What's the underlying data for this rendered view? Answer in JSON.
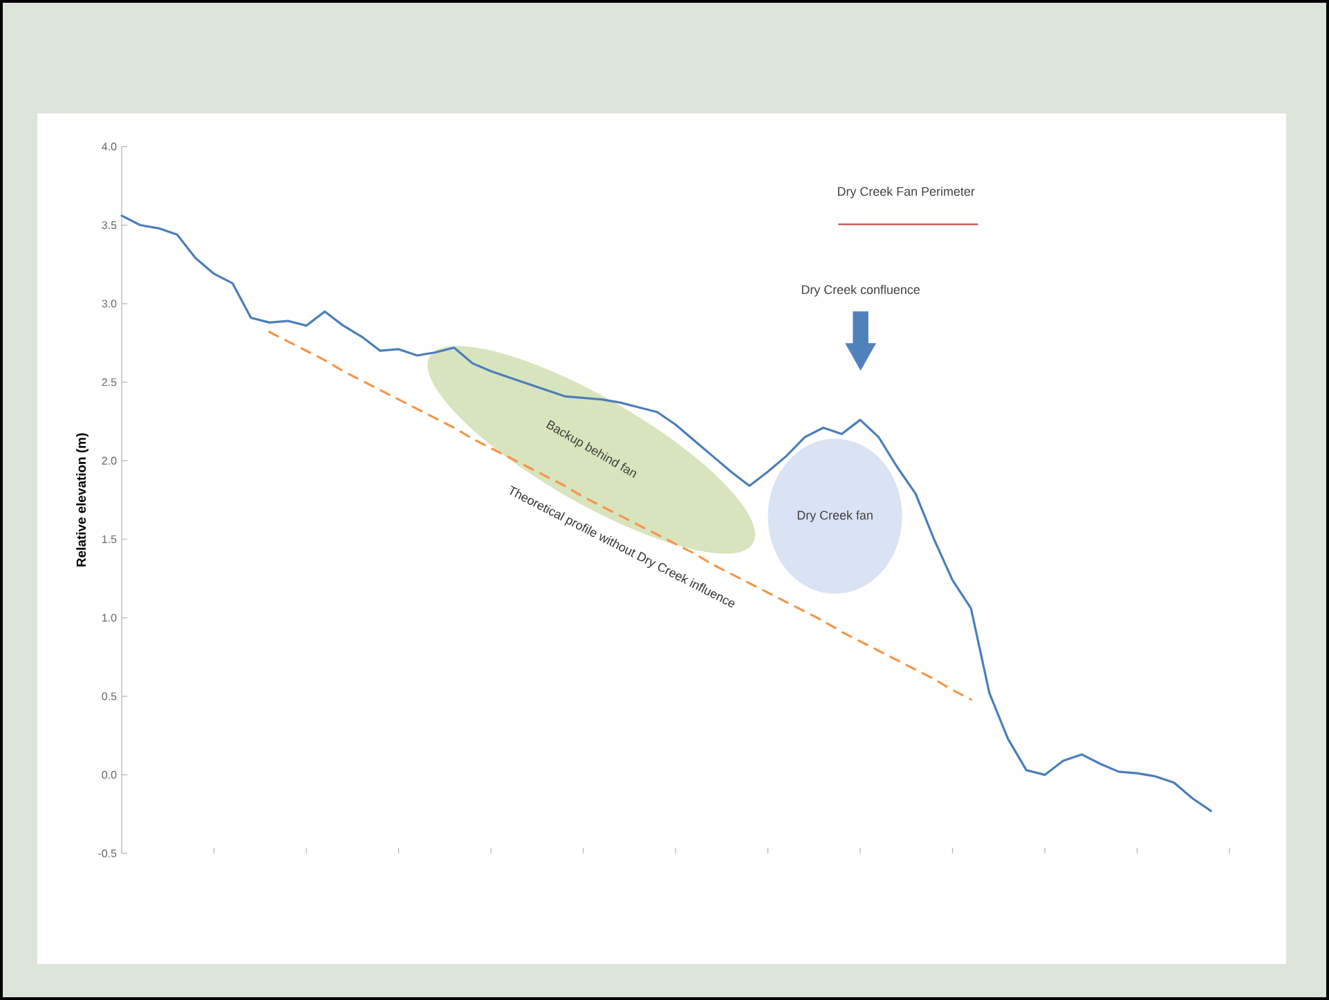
{
  "chart_data": {
    "type": "line",
    "ylabel": "Relative elevation (m)",
    "categories": [
      null,
      null,
      null,
      null,
      null,
      null,
      null,
      null,
      null,
      null,
      null,
      null,
      null,
      null,
      null,
      null,
      null,
      null,
      null,
      null,
      null,
      null,
      null,
      null,
      null,
      null,
      null,
      null,
      null,
      null,
      null,
      null,
      null,
      null,
      null,
      null,
      null,
      null,
      null,
      null,
      null,
      null,
      null,
      null,
      null,
      null,
      null,
      null,
      null,
      null,
      null,
      null,
      null,
      null,
      null,
      null,
      null,
      null,
      null,
      null,
      null
    ],
    "ylim": [
      -0.5,
      4
    ],
    "yticks": [
      {
        "value": -0.5,
        "label": "-0.5"
      },
      {
        "value": 0,
        "label": "0.0"
      },
      {
        "value": 0.5,
        "label": "0.5"
      },
      {
        "value": 1,
        "label": "1.0"
      },
      {
        "value": 1.5,
        "label": "1.5"
      },
      {
        "value": 2,
        "label": "2.0"
      },
      {
        "value": 2.5,
        "label": "2.5"
      },
      {
        "value": 3,
        "label": "3.0"
      },
      {
        "value": 3.5,
        "label": "3.5"
      },
      {
        "value": 4,
        "label": "4.0"
      }
    ],
    "tick_labels": "y",
    "marker": "none",
    "grid": false,
    "series": [
      {
        "color": "#4a7ebb",
        "line_style": "solid",
        "values": [
          3.56,
          3.5,
          3.48,
          3.44,
          3.29,
          3.19,
          3.13,
          2.91,
          2.88,
          2.89,
          2.86,
          2.95,
          2.86,
          2.79,
          2.7,
          2.71,
          2.67,
          2.69,
          2.72,
          2.62,
          2.57,
          2.53,
          2.49,
          2.45,
          2.41,
          2.4,
          2.39,
          2.37,
          2.34,
          2.31,
          2.23,
          2.13,
          2.03,
          1.93,
          1.84,
          1.93,
          2.03,
          2.15,
          2.21,
          2.17,
          2.26,
          2.15,
          1.96,
          1.79,
          1.5,
          1.24,
          1.06,
          0.52,
          0.23,
          0.03,
          0.0,
          0.09,
          0.13,
          0.07,
          0.02,
          0.01,
          -0.01,
          -0.05,
          -0.15,
          -0.23,
          null
        ]
      },
      {
        "name": "Theoretical profile without Dry Creek influence",
        "line_style": "dashed",
        "color": "#f79646",
        "values": [
          null,
          null,
          null,
          null,
          null,
          null,
          null,
          null,
          2.82,
          2.76,
          2.7,
          2.64,
          2.57,
          2.51,
          2.45,
          2.39,
          2.33,
          2.27,
          2.21,
          2.14,
          2.08,
          2.02,
          1.96,
          1.9,
          1.84,
          1.77,
          1.71,
          1.65,
          1.59,
          1.53,
          1.47,
          1.41,
          1.34,
          1.28,
          1.22,
          1.16,
          1.1,
          1.04,
          0.98,
          0.91,
          0.85,
          0.79,
          0.73,
          0.67,
          0.61,
          0.54,
          0.48,
          null,
          null,
          null,
          null,
          null,
          null,
          null,
          null,
          null,
          null,
          null,
          null,
          null,
          null
        ]
      }
    ],
    "annotations": [
      "Dry Creek confluence",
      "Backup behind fan",
      "Dry Creek fan",
      "Dry Creek Fan Perimeter"
    ]
  }
}
